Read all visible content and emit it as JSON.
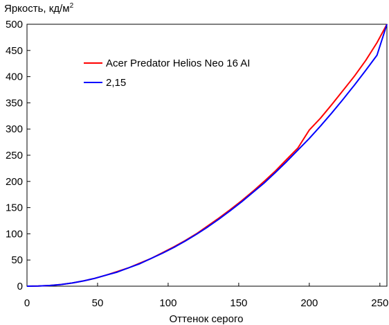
{
  "chart_data": {
    "type": "line",
    "title": "",
    "ylabel": "Яркость, кд/м",
    "ylabel_superscript": "2",
    "xlabel": "Оттенок серого",
    "xlim": [
      0,
      255
    ],
    "ylim": [
      0,
      500
    ],
    "x_ticks": [
      0,
      50,
      100,
      150,
      200,
      250
    ],
    "y_ticks": [
      0,
      50,
      100,
      150,
      200,
      250,
      300,
      350,
      400,
      450,
      500
    ],
    "grid": false,
    "legend_position": "upper-left",
    "series": [
      {
        "name": "Acer Predator Helios Neo 16 AI",
        "color": "#ff0000",
        "x": [
          0,
          8,
          16,
          24,
          32,
          40,
          48,
          56,
          64,
          72,
          80,
          88,
          96,
          104,
          112,
          120,
          128,
          136,
          144,
          152,
          160,
          168,
          176,
          184,
          192,
          200,
          208,
          216,
          224,
          232,
          240,
          248,
          255
        ],
        "y": [
          0,
          0.3,
          1.3,
          3.2,
          6.1,
          10,
          15,
          21,
          28,
          35,
          44,
          53,
          64,
          75,
          87,
          100,
          115,
          130,
          146,
          163,
          181,
          200,
          220,
          242,
          264,
          298,
          321,
          347,
          374,
          401,
          431,
          465,
          500
        ]
      },
      {
        "name": "2,15",
        "color": "#0000ff",
        "x": [
          0,
          8,
          16,
          24,
          32,
          40,
          48,
          56,
          64,
          72,
          80,
          88,
          96,
          104,
          112,
          120,
          128,
          136,
          144,
          152,
          160,
          168,
          176,
          184,
          192,
          200,
          208,
          216,
          224,
          232,
          240,
          248,
          255
        ],
        "y": [
          0,
          0.3,
          1.3,
          3.2,
          6.1,
          10,
          15,
          21,
          27,
          35,
          43,
          53,
          63,
          74,
          86,
          99,
          113,
          128,
          144,
          161,
          179,
          197,
          217,
          238,
          260,
          282,
          306,
          331,
          357,
          384,
          412,
          441,
          500
        ]
      }
    ]
  }
}
